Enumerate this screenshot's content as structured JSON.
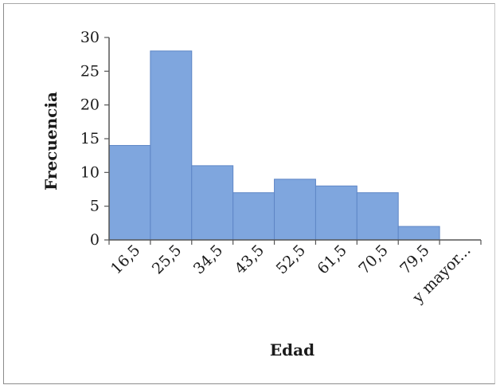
{
  "chart_data": {
    "type": "bar",
    "title": "",
    "xlabel": "Edad",
    "ylabel": "Frecuencia",
    "categories": [
      "16,5",
      "25,5",
      "34,5",
      "43,5",
      "52,5",
      "61,5",
      "70,5",
      "79,5",
      "y mayor..."
    ],
    "values": [
      14,
      28,
      11,
      7,
      9,
      8,
      7,
      2,
      0
    ],
    "ylim": [
      0,
      30
    ],
    "yticks": [
      "0",
      "5",
      "10",
      "15",
      "20",
      "25",
      "30"
    ],
    "grid": false,
    "legend": "none",
    "bar_color": "#7fa6de",
    "bar_edge_color": "#5e86c6"
  }
}
